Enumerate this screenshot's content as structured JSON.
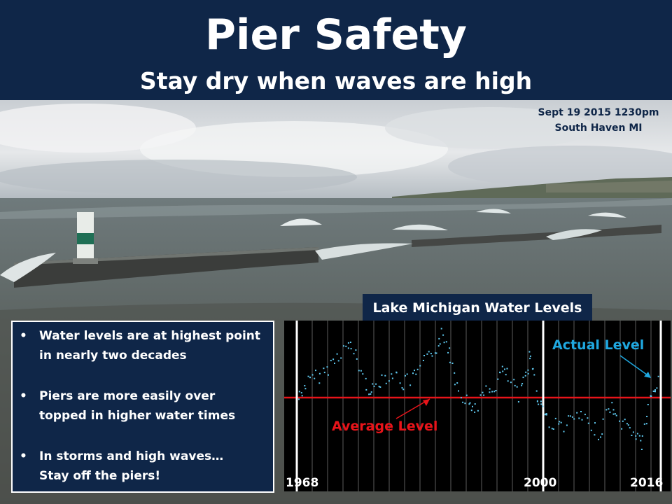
{
  "header": {
    "title": "Pier Safety",
    "subtitle": "Stay dry when waves are high"
  },
  "photo": {
    "caption_line1": "Sept 19 2015 1230pm",
    "caption_line2": "South Haven MI"
  },
  "bullets": [
    {
      "line1": "Water levels are at highest point",
      "line2": "in nearly two decades"
    },
    {
      "line1": "Piers are more easily over",
      "line2": "topped in higher water times"
    },
    {
      "line1": "In storms and high waves…",
      "line2": "Stay off the piers!"
    }
  ],
  "chart_data": {
    "type": "scatter",
    "title": "Lake Michigan Water Levels",
    "x_start_label": "1968",
    "x_mid_label": "2000",
    "x_end_label": "2016",
    "average_label": "Average Level",
    "actual_label": "Actual Level",
    "xlim": [
      1968,
      2016
    ],
    "colors": {
      "points": "#5fc8ee",
      "average_line": "#e8141a",
      "annotation": "#1fa8e0",
      "background": "#000000"
    }
  }
}
